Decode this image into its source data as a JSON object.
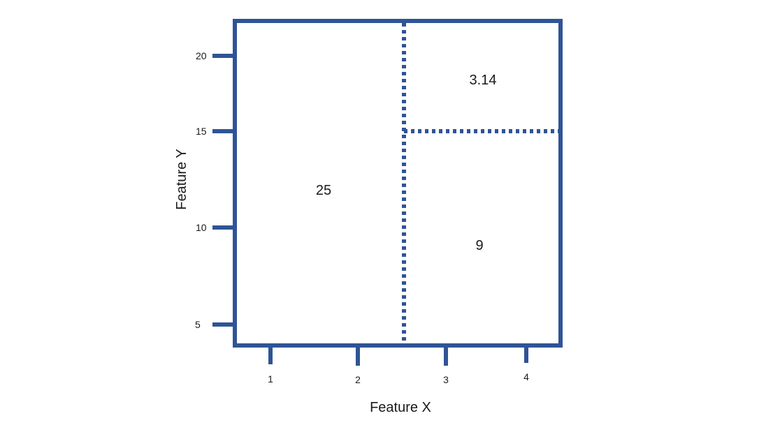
{
  "colors": {
    "stroke": "#2f5496",
    "text": "#1a1a1a",
    "background": "#ffffff"
  },
  "axes": {
    "x_label": "Feature X",
    "y_label": "Feature Y",
    "x_ticks": [
      "1",
      "2",
      "3",
      "4"
    ],
    "y_ticks": [
      "20",
      "15",
      "10",
      "5"
    ]
  },
  "regions": {
    "left": "25",
    "top_right": "3.14",
    "bottom_right": "9"
  }
}
